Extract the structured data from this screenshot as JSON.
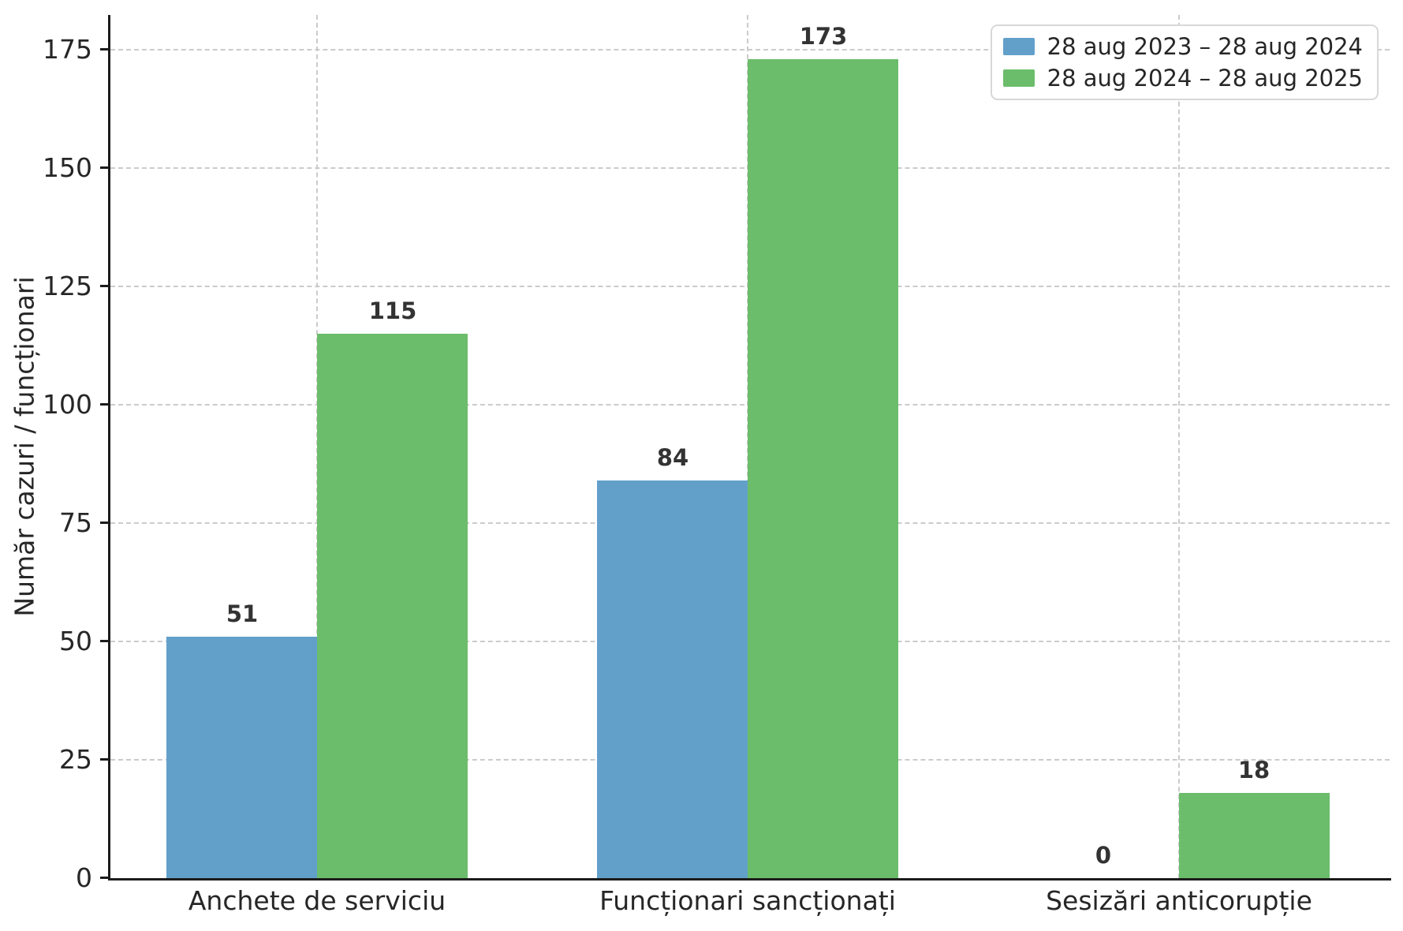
{
  "chart_data": {
    "type": "bar",
    "title": "",
    "categories": [
      "Anchete de serviciu",
      "Funcționari sancționați",
      "Sesizări anticorupție"
    ],
    "series": [
      {
        "name": "28 aug 2023 – 28 aug 2024",
        "color": "#62A0CA",
        "values": [
          51,
          84,
          0
        ]
      },
      {
        "name": "28 aug 2024 – 28 aug 2025",
        "color": "#6BBD6B",
        "values": [
          115,
          173,
          18
        ]
      }
    ],
    "xlabel": "",
    "ylabel": "Număr cazuri / funcționari",
    "yticks": [
      0,
      25,
      50,
      75,
      100,
      125,
      150,
      175
    ],
    "ylim": [
      0,
      182
    ],
    "grid": "dashed, horizontal and vertical",
    "legend_position": "upper right",
    "value_labels_shown": true
  },
  "colors": {
    "background": "#ffffff",
    "grid": "#cbcbcb",
    "axis": "#1c1c1c",
    "tick_text": "#262626",
    "value_label_text": "#333333",
    "legend_border": "#d8d8d8",
    "series_blue": "#62A0CA",
    "series_green": "#6BBD6B"
  }
}
